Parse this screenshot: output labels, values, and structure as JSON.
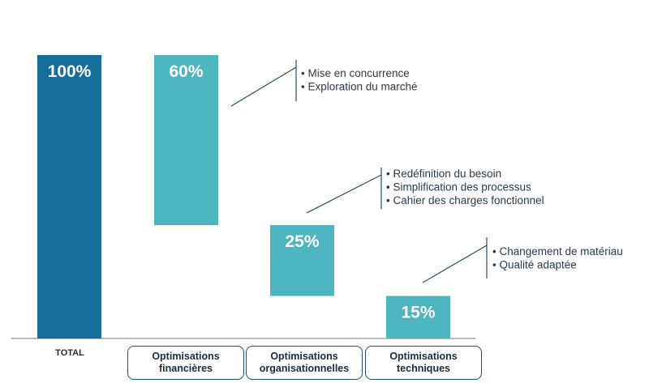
{
  "chart_data": {
    "type": "bar",
    "subtype": "waterfall",
    "ylim": [
      0,
      100
    ],
    "bars": [
      {
        "label": "100%",
        "value": 100,
        "start": 0,
        "end": 100,
        "color": "#166e9b",
        "category": "TOTAL"
      },
      {
        "label": "60%",
        "value": 60,
        "start": 40,
        "end": 100,
        "color": "#4db5c0",
        "category": "Optimisations\nfinancières"
      },
      {
        "label": "25%",
        "value": 25,
        "start": 15,
        "end": 40,
        "color": "#4db5c0",
        "category": "Optimisations\norganisationnelles"
      },
      {
        "label": "15%",
        "value": 15,
        "start": 0,
        "end": 15,
        "color": "#4db5c0",
        "category": "Optimisations\ntechniques"
      }
    ],
    "total_label": "TOTAL",
    "categories": [
      "Optimisations\nfinancières",
      "Optimisations\norganisationnelles",
      "Optimisations\ntechniques"
    ],
    "annotations": [
      {
        "bar": 1,
        "items": [
          "Mise en concurrence",
          "Exploration du marché"
        ]
      },
      {
        "bar": 2,
        "items": [
          "Redéfinition du besoin",
          "Simplification des processus",
          "Cahier des charges fonctionnel"
        ]
      },
      {
        "bar": 3,
        "items": [
          "Changement de matériau",
          "Qualité adaptée"
        ]
      }
    ],
    "bullet": "•",
    "colors": {
      "total": "#166e9b",
      "step": "#4db5c0",
      "line": "#1d4f72",
      "text": "#2b3a4a"
    }
  }
}
